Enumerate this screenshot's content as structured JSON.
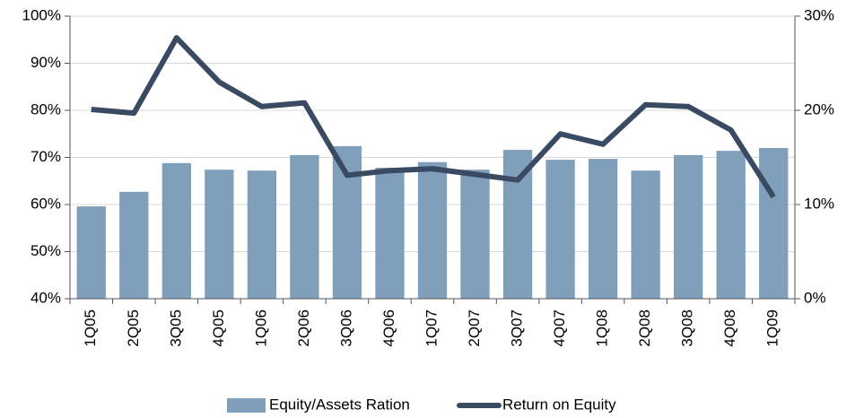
{
  "chart_data": {
    "type": "bar_line",
    "categories": [
      "1Q05",
      "2Q05",
      "3Q05",
      "4Q05",
      "1Q06",
      "2Q06",
      "3Q06",
      "4Q06",
      "1Q07",
      "2Q07",
      "3Q07",
      "4Q07",
      "1Q08",
      "2Q08",
      "3Q08",
      "4Q08",
      "1Q09"
    ],
    "series": [
      {
        "name": "Equity/Assets Ration",
        "type": "bar",
        "color": "#7f9fbb",
        "axis": "y",
        "values": [
          59.6,
          62.7,
          68.8,
          67.4,
          67.2,
          70.5,
          72.4,
          67.8,
          69.0,
          67.4,
          71.6,
          69.5,
          69.7,
          67.2,
          70.5,
          71.4,
          72.0
        ]
      },
      {
        "name": "Return on Equity",
        "type": "line",
        "color": "#3a4a63",
        "axis": "y2",
        "values": [
          20.1,
          19.7,
          27.7,
          23.0,
          20.4,
          20.8,
          13.1,
          13.6,
          13.8,
          13.2,
          12.6,
          17.5,
          16.4,
          20.6,
          20.4,
          17.9,
          10.8
        ]
      }
    ],
    "ylim": [
      40,
      100
    ],
    "yticks": [
      {
        "value": 40,
        "label": "40%"
      },
      {
        "value": 50,
        "label": "50%"
      },
      {
        "value": 60,
        "label": "60%"
      },
      {
        "value": 70,
        "label": "70%"
      },
      {
        "value": 80,
        "label": "80%"
      },
      {
        "value": 90,
        "label": "90%"
      },
      {
        "value": 100,
        "label": "100%"
      }
    ],
    "y2lim": [
      0,
      30
    ],
    "y2ticks": [
      {
        "value": 0,
        "label": "0%"
      },
      {
        "value": 10,
        "label": "10%"
      },
      {
        "value": 20,
        "label": "20%"
      },
      {
        "value": 30,
        "label": "30%"
      }
    ],
    "grid": true,
    "legend": "bottom"
  }
}
